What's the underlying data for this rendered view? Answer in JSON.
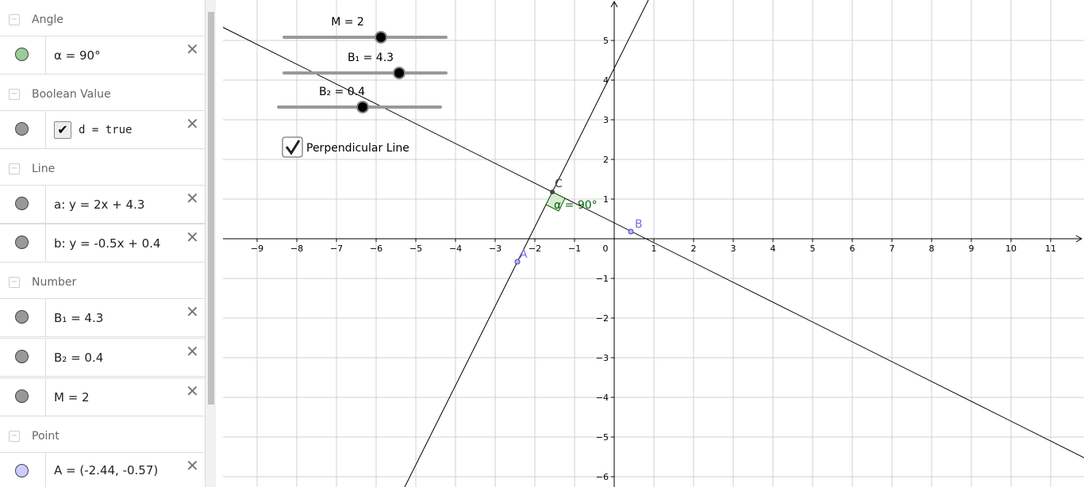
{
  "algebra": {
    "groups": [
      {
        "title": "Angle",
        "items": [
          {
            "text": "α = 90°"
          }
        ]
      },
      {
        "title": "Boolean Value",
        "items": [
          {
            "text": "d = true"
          }
        ]
      },
      {
        "title": "Line",
        "items": [
          {
            "text": "a: y = 2x + 4.3"
          },
          {
            "text": "b: y = -0.5x + 0.4"
          }
        ]
      },
      {
        "title": "Number",
        "items": [
          {
            "text": "B₁ = 4.3"
          },
          {
            "text": "B₂ = 0.4"
          },
          {
            "text": "M = 2"
          }
        ]
      },
      {
        "title": "Point",
        "items": [
          {
            "text": "A = (-2.44, -0.57)"
          }
        ]
      }
    ]
  },
  "graphics": {
    "sliders": [
      {
        "label": "M = 2"
      },
      {
        "label": "B₁ = 4.3"
      },
      {
        "label": "B₂ = 0.4"
      }
    ],
    "checkbox": "Perpendicular Line",
    "points": [
      {
        "label": "A"
      },
      {
        "label": "B"
      },
      {
        "label": "C"
      }
    ],
    "angle_label": "α = 90°",
    "origin_label": "0",
    "xticks": [
      {
        "value": -9,
        "label": "−9"
      },
      {
        "value": -8,
        "label": "−8"
      },
      {
        "value": -7,
        "label": "−7"
      },
      {
        "value": -6,
        "label": "−6"
      },
      {
        "value": -5,
        "label": "−5"
      },
      {
        "value": -4,
        "label": "−4"
      },
      {
        "value": -3,
        "label": "−3"
      },
      {
        "value": -2,
        "label": "−2"
      },
      {
        "value": -1,
        "label": "−1"
      },
      1,
      2,
      3,
      4,
      5,
      6,
      7,
      8,
      9,
      10,
      11
    ],
    "yticks": [
      5,
      4,
      3,
      2,
      1,
      {
        "value": -1,
        "label": "−1"
      },
      {
        "value": -2,
        "label": "−2"
      },
      {
        "value": -3,
        "label": "−3"
      },
      {
        "value": -4,
        "label": "−4"
      },
      {
        "value": -5,
        "label": "−5"
      },
      {
        "value": -6,
        "label": "−6"
      }
    ]
  }
}
